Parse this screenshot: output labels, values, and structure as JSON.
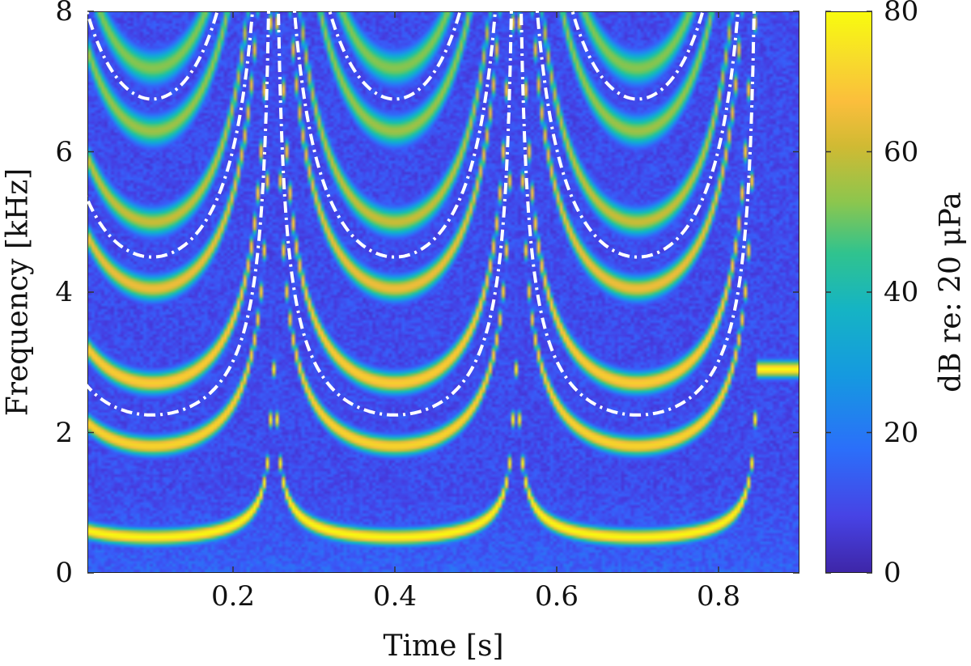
{
  "chart_data": {
    "type": "heatmap",
    "xlabel": "Time [s]",
    "ylabel": "Frequency [kHz]",
    "colorbar_label": "dB re: 20 μPa",
    "xlim": [
      0.02,
      0.9
    ],
    "ylim": [
      0,
      8
    ],
    "clim": [
      0,
      80
    ],
    "x_ticks": [
      "0.2",
      "0.4",
      "0.6",
      "0.8"
    ],
    "x_tick_values": [
      0.2,
      0.4,
      0.6,
      0.8
    ],
    "y_ticks": [
      "0",
      "2",
      "4",
      "6",
      "8"
    ],
    "y_tick_values": [
      0,
      2,
      4,
      6,
      8
    ],
    "colorbar_ticks": [
      "0",
      "20",
      "40",
      "60",
      "80"
    ],
    "colorbar_tick_values": [
      0,
      20,
      40,
      60,
      80
    ],
    "colormap": "parula",
    "background_level_db": 10,
    "period_s": 0.3,
    "minimum_times_s": [
      0.1,
      0.4,
      0.7
    ],
    "collision_times_s": [
      0.01,
      0.31,
      0.61,
      0.91
    ],
    "harmonic_minimum_frequencies_khz": [
      0.5,
      1.8,
      2.7,
      4.05,
      5.0,
      6.3,
      7.2
    ],
    "harmonic_levels_db": [
      80,
      72,
      70,
      64,
      58,
      54,
      52
    ],
    "reference_curves": {
      "style": "white dash-dot",
      "minimum_frequencies_khz": [
        2.25,
        4.5,
        6.75
      ]
    },
    "grid": false
  }
}
